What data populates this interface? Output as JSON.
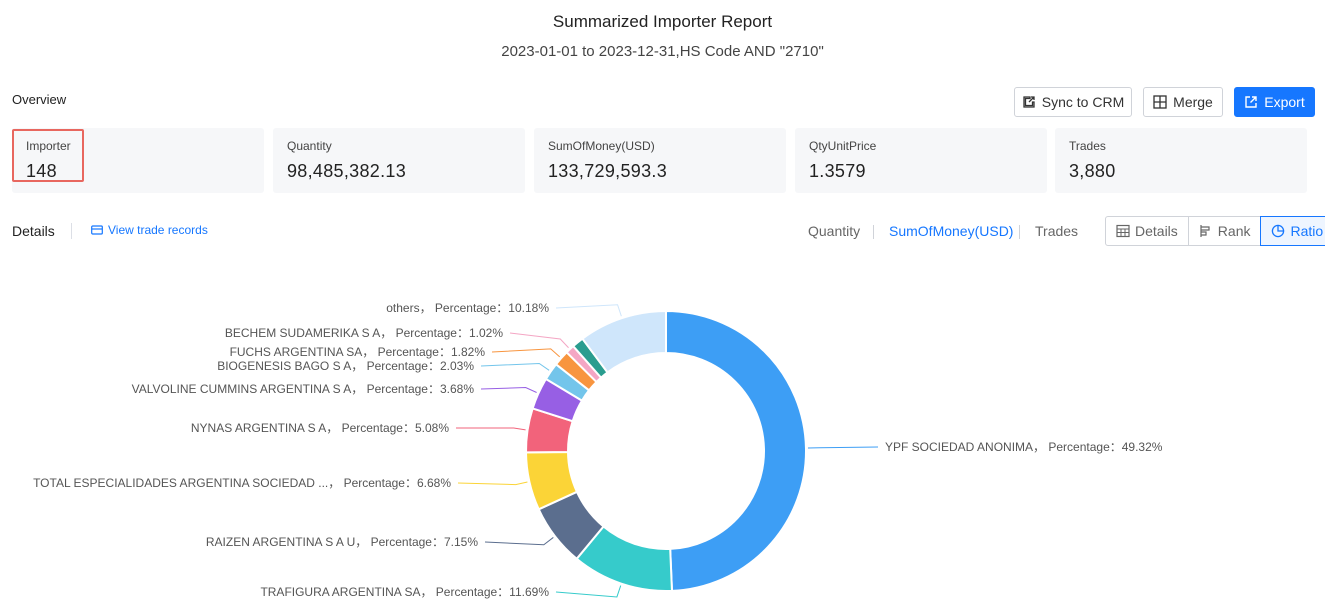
{
  "header": {
    "title": "Summarized Importer Report",
    "subtitle": "2023-01-01 to 2023-12-31,HS Code AND \"2710\""
  },
  "overview": {
    "label": "Overview",
    "actions": {
      "sync_label": "Sync to CRM",
      "merge_label": "Merge",
      "export_label": "Export"
    },
    "stats": [
      {
        "label": "Importer",
        "value": "148"
      },
      {
        "label": "Quantity",
        "value": "98,485,382.13"
      },
      {
        "label": "SumOfMoney(USD)",
        "value": "133,729,593.3"
      },
      {
        "label": "QtyUnitPrice",
        "value": "1.3579"
      },
      {
        "label": "Trades",
        "value": "3,880"
      }
    ]
  },
  "details": {
    "label": "Details",
    "view_records_label": "View trade records",
    "metric_tabs": [
      "Quantity",
      "SumOfMoney(USD)",
      "Trades"
    ],
    "active_metric": "SumOfMoney(USD)",
    "views": [
      "Details",
      "Rank",
      "Ratio"
    ],
    "active_view": "Ratio"
  },
  "colors": {
    "accent": "#1677ff",
    "highlight": "#e8675f"
  },
  "chart_data": {
    "type": "pie",
    "donut": true,
    "label_format": "{name}， Percentage：{value}%",
    "slices": [
      {
        "name": "YPF SOCIEDAD ANONIMA",
        "value": 49.32,
        "color": "#3d9ef5"
      },
      {
        "name": "TRAFIGURA ARGENTINA SA",
        "value": 11.69,
        "color": "#36cbcb"
      },
      {
        "name": "RAIZEN ARGENTINA S A U",
        "value": 7.15,
        "color": "#5b6e8e"
      },
      {
        "name": "TOTAL ESPECIALIDADES ARGENTINA SOCIEDAD ...",
        "value": 6.68,
        "color": "#fbd437"
      },
      {
        "name": "NYNAS ARGENTINA S A",
        "value": 5.08,
        "color": "#f2637b"
      },
      {
        "name": "VALVOLINE CUMMINS ARGENTINA S A",
        "value": 3.68,
        "color": "#975fe4"
      },
      {
        "name": "BIOGENESIS BAGO S A",
        "value": 2.03,
        "color": "#73c5eb"
      },
      {
        "name": "FUCHS ARGENTINA SA",
        "value": 1.82,
        "color": "#f8953f"
      },
      {
        "name": "BECHEM SUDAMERIKA S A",
        "value": 1.02,
        "color": "#f4a6c4"
      },
      {
        "name": "",
        "value": 1.35,
        "color": "#2a9d8f"
      },
      {
        "name": "others",
        "value": 10.18,
        "color": "#cfe6fb"
      }
    ]
  }
}
